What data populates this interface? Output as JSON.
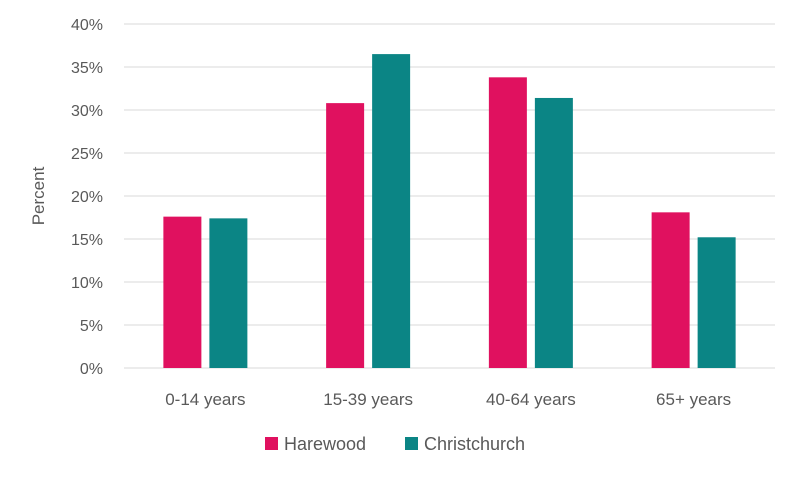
{
  "chart_data": {
    "type": "bar",
    "title": "",
    "xlabel": "",
    "ylabel": "Percent",
    "ylim": [
      0,
      40
    ],
    "y_ticks": [
      "0%",
      "5%",
      "10%",
      "15%",
      "20%",
      "25%",
      "30%",
      "35%",
      "40%"
    ],
    "y_tick_values": [
      0,
      5,
      10,
      15,
      20,
      25,
      30,
      35,
      40
    ],
    "grid": true,
    "legend_position": "bottom",
    "categories": [
      "0-14 years",
      "15-39 years",
      "40-64 years",
      "65+ years"
    ],
    "series": [
      {
        "name": "Harewood",
        "color": "#E0115F",
        "values": [
          17.6,
          30.8,
          33.8,
          18.1
        ]
      },
      {
        "name": "Christchurch",
        "color": "#0B8585",
        "values": [
          17.4,
          36.5,
          31.4,
          15.2
        ]
      }
    ]
  }
}
